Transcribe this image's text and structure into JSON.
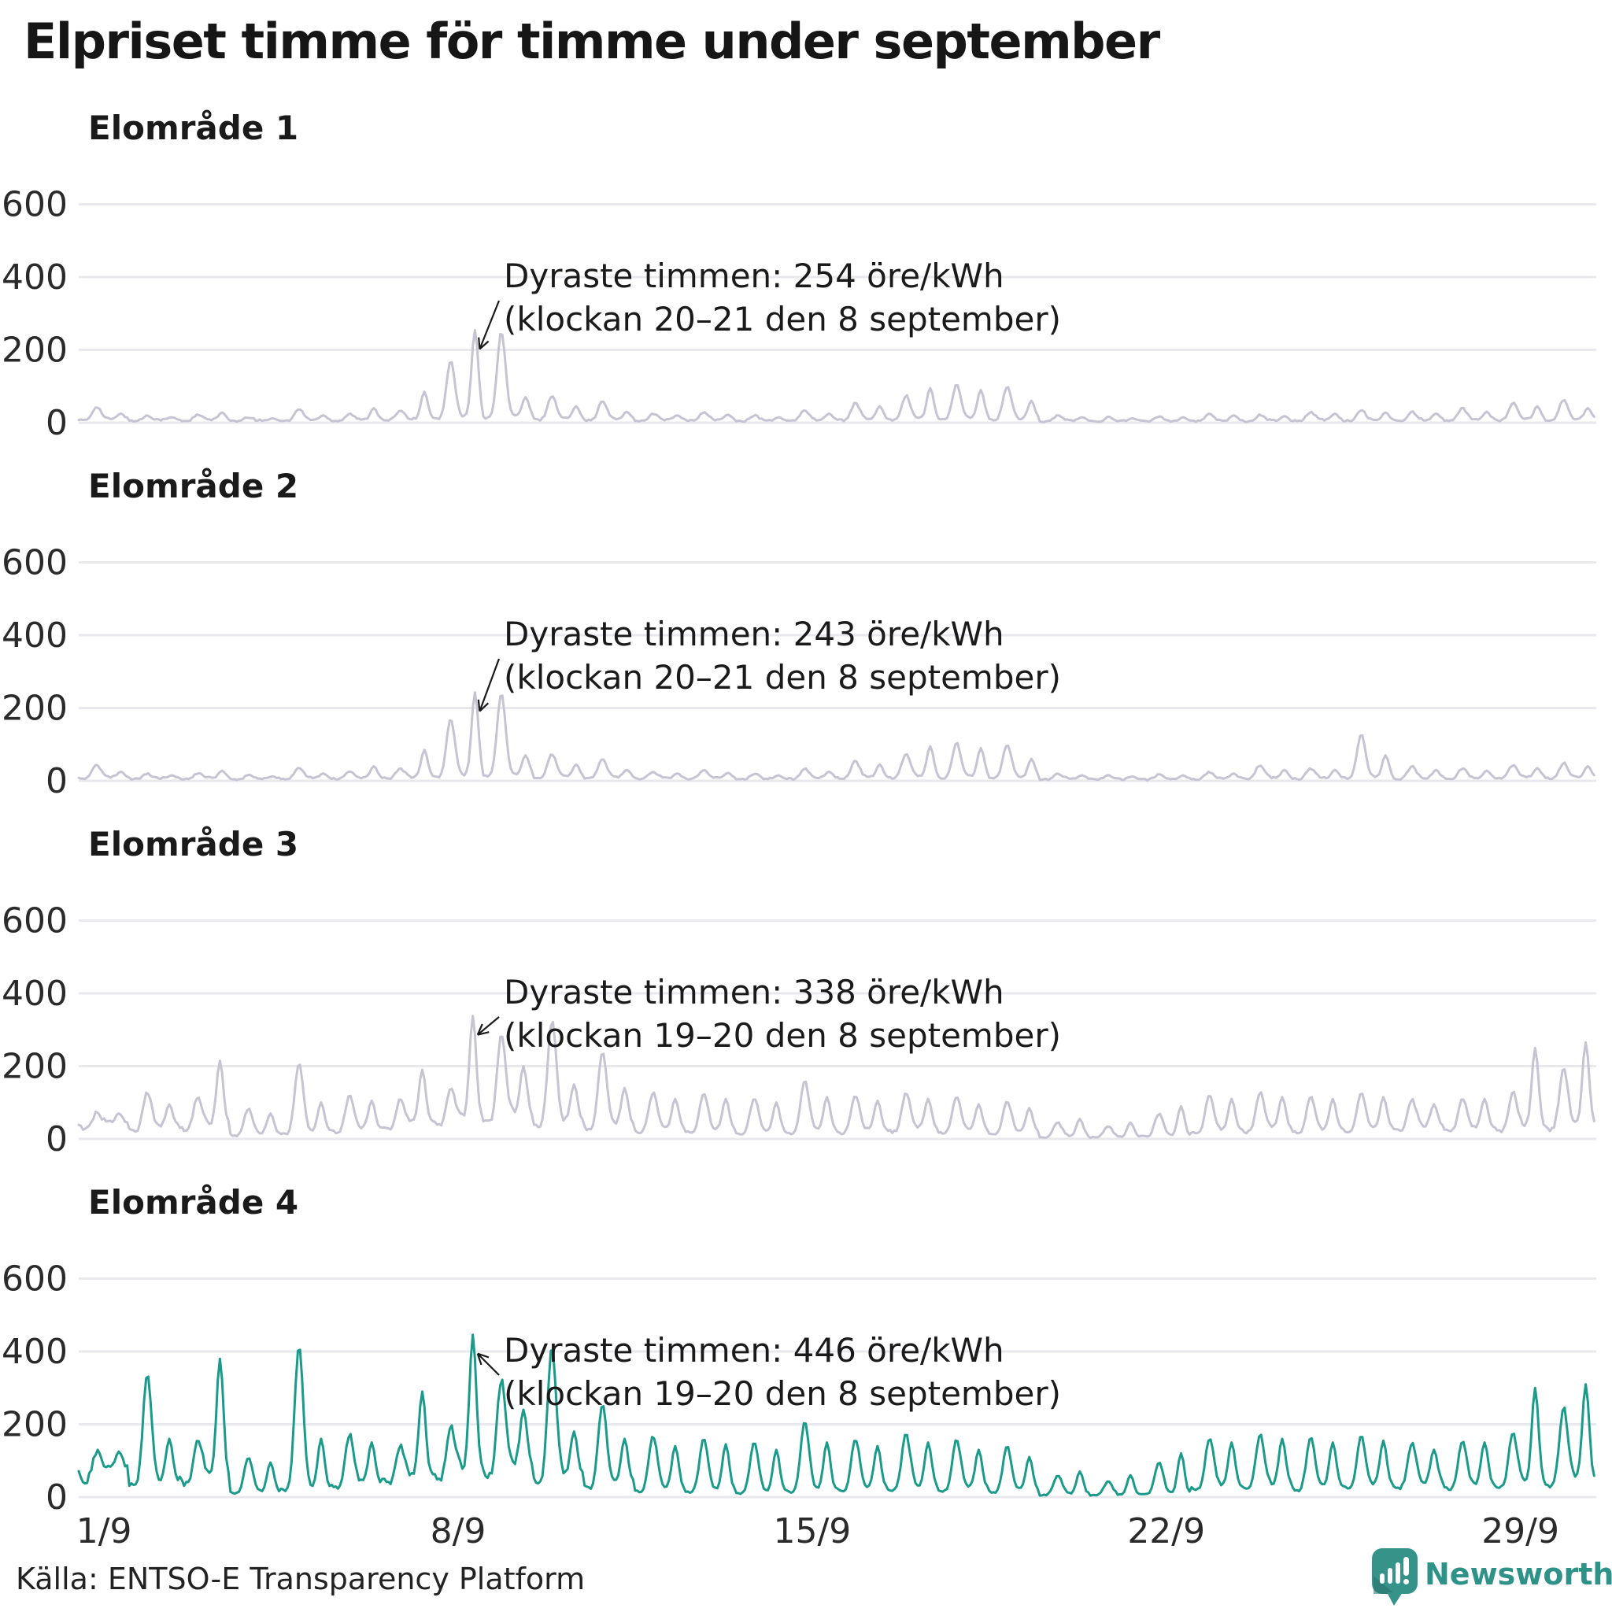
{
  "title": "Elpriset timme för timme under september",
  "source": "Källa: ENTSO-E Transparency Platform",
  "logo": {
    "text": "Newsworthy",
    "color": "#2f9289",
    "icon": "newsworthy-speech-bubble-bar-chart-icon"
  },
  "colors": {
    "muted_line": "#c6c4d3",
    "highlight_line": "#1a9a8b",
    "gridline": "#e9e8ed",
    "text": "#1a1a1a",
    "logo_teal": "#35938a"
  },
  "chart_data": {
    "type": "line",
    "title": "Elpriset timme för timme under september",
    "unit": "öre/kWh",
    "layout": "4 stacked small-multiple line charts, shared x axis, horizontal gridlines only",
    "x": {
      "n_days": 30,
      "labels": [
        "1/9",
        "8/9",
        "15/9",
        "22/9",
        "29/9"
      ],
      "label_days": [
        1,
        8,
        15,
        22,
        29
      ]
    },
    "y": {
      "ticks": [
        "0",
        "200",
        "400",
        "600"
      ],
      "tick_values": [
        0,
        200,
        400,
        600
      ],
      "range": [
        0,
        600
      ]
    },
    "series_note": "hourly prices; daily triplets are [night-base, morning-peak, evening-peak] in öre/kWh estimated from the chart",
    "series": [
      {
        "name": "Elområde 1",
        "color": "#c6c4d3",
        "annotation_line1": "Dyraste timmen: 254 öre/kWh",
        "annotation_line2": "(klockan 20–21 den 8 september)",
        "max_value": 254,
        "max_day": 8,
        "max_hour": 20,
        "daily": [
          [
            10,
            45,
            25
          ],
          [
            8,
            20,
            15
          ],
          [
            8,
            22,
            28
          ],
          [
            6,
            15,
            12
          ],
          [
            8,
            38,
            20
          ],
          [
            8,
            25,
            40
          ],
          [
            10,
            35,
            85
          ],
          [
            15,
            170,
            254
          ],
          [
            18,
            250,
            70
          ],
          [
            12,
            75,
            45
          ],
          [
            10,
            60,
            30
          ],
          [
            8,
            25,
            20
          ],
          [
            8,
            30,
            22
          ],
          [
            6,
            20,
            15
          ],
          [
            8,
            35,
            25
          ],
          [
            10,
            55,
            45
          ],
          [
            12,
            75,
            95
          ],
          [
            12,
            105,
            90
          ],
          [
            10,
            100,
            60
          ],
          [
            6,
            20,
            15
          ],
          [
            5,
            15,
            12
          ],
          [
            5,
            18,
            15
          ],
          [
            6,
            25,
            20
          ],
          [
            6,
            22,
            18
          ],
          [
            8,
            30,
            25
          ],
          [
            8,
            35,
            28
          ],
          [
            8,
            30,
            25
          ],
          [
            8,
            40,
            30
          ],
          [
            10,
            55,
            45
          ],
          [
            10,
            65,
            40
          ]
        ]
      },
      {
        "name": "Elområde 2",
        "color": "#c6c4d3",
        "annotation_line1": "Dyraste timmen: 243 öre/kWh",
        "annotation_line2": "(klockan 20–21 den 8 september)",
        "max_value": 243,
        "max_day": 8,
        "max_hour": 20,
        "daily": [
          [
            10,
            45,
            25
          ],
          [
            8,
            20,
            15
          ],
          [
            8,
            22,
            28
          ],
          [
            6,
            15,
            12
          ],
          [
            8,
            38,
            20
          ],
          [
            8,
            25,
            40
          ],
          [
            10,
            35,
            85
          ],
          [
            15,
            170,
            243
          ],
          [
            18,
            240,
            70
          ],
          [
            12,
            75,
            45
          ],
          [
            10,
            60,
            30
          ],
          [
            8,
            25,
            20
          ],
          [
            8,
            30,
            22
          ],
          [
            6,
            20,
            15
          ],
          [
            8,
            35,
            25
          ],
          [
            10,
            55,
            45
          ],
          [
            12,
            75,
            95
          ],
          [
            12,
            105,
            90
          ],
          [
            10,
            100,
            60
          ],
          [
            6,
            20,
            15
          ],
          [
            5,
            15,
            12
          ],
          [
            5,
            18,
            15
          ],
          [
            6,
            25,
            20
          ],
          [
            8,
            45,
            30
          ],
          [
            8,
            35,
            30
          ],
          [
            10,
            130,
            70
          ],
          [
            8,
            40,
            30
          ],
          [
            8,
            35,
            28
          ],
          [
            10,
            45,
            35
          ],
          [
            10,
            50,
            40
          ]
        ]
      },
      {
        "name": "Elområde 3",
        "color": "#c6c4d3",
        "annotation_line1": "Dyraste timmen: 338 öre/kWh",
        "annotation_line2": "(klockan 19–20 den 8 september)",
        "max_value": 338,
        "max_day": 8,
        "max_hour": 19,
        "daily": [
          [
            45,
            75,
            70
          ],
          [
            35,
            130,
            95
          ],
          [
            40,
            120,
            215
          ],
          [
            15,
            85,
            70
          ],
          [
            20,
            210,
            100
          ],
          [
            30,
            120,
            105
          ],
          [
            45,
            110,
            190
          ],
          [
            60,
            150,
            338
          ],
          [
            70,
            295,
            200
          ],
          [
            50,
            330,
            150
          ],
          [
            40,
            240,
            140
          ],
          [
            30,
            130,
            110
          ],
          [
            25,
            125,
            110
          ],
          [
            20,
            115,
            100
          ],
          [
            25,
            160,
            115
          ],
          [
            25,
            120,
            105
          ],
          [
            30,
            130,
            110
          ],
          [
            25,
            120,
            95
          ],
          [
            20,
            105,
            85
          ],
          [
            8,
            45,
            55
          ],
          [
            5,
            35,
            45
          ],
          [
            10,
            70,
            90
          ],
          [
            25,
            120,
            110
          ],
          [
            30,
            130,
            115
          ],
          [
            25,
            120,
            110
          ],
          [
            30,
            125,
            115
          ],
          [
            35,
            110,
            95
          ],
          [
            30,
            115,
            110
          ],
          [
            35,
            130,
            250
          ],
          [
            40,
            200,
            265
          ]
        ]
      },
      {
        "name": "Elområde 4",
        "color": "#1a9a8b",
        "annotation_line1": "Dyraste timmen: 446 öre/kWh",
        "annotation_line2": "(klockan 19–20 den 8 september)",
        "max_value": 446,
        "max_day": 8,
        "max_hour": 19,
        "daily": [
          [
            80,
            130,
            125
          ],
          [
            45,
            340,
            160
          ],
          [
            60,
            165,
            380
          ],
          [
            15,
            110,
            95
          ],
          [
            25,
            420,
            160
          ],
          [
            40,
            175,
            150
          ],
          [
            60,
            145,
            290
          ],
          [
            80,
            200,
            446
          ],
          [
            90,
            330,
            240
          ],
          [
            60,
            420,
            180
          ],
          [
            40,
            255,
            160
          ],
          [
            25,
            170,
            140
          ],
          [
            20,
            160,
            145
          ],
          [
            15,
            150,
            130
          ],
          [
            20,
            210,
            150
          ],
          [
            25,
            160,
            140
          ],
          [
            30,
            175,
            150
          ],
          [
            25,
            160,
            130
          ],
          [
            20,
            140,
            110
          ],
          [
            8,
            60,
            70
          ],
          [
            5,
            45,
            60
          ],
          [
            10,
            95,
            120
          ],
          [
            30,
            165,
            150
          ],
          [
            35,
            175,
            160
          ],
          [
            30,
            165,
            150
          ],
          [
            35,
            170,
            155
          ],
          [
            40,
            150,
            130
          ],
          [
            35,
            155,
            150
          ],
          [
            40,
            180,
            300
          ],
          [
            50,
            250,
            310
          ]
        ]
      }
    ]
  }
}
